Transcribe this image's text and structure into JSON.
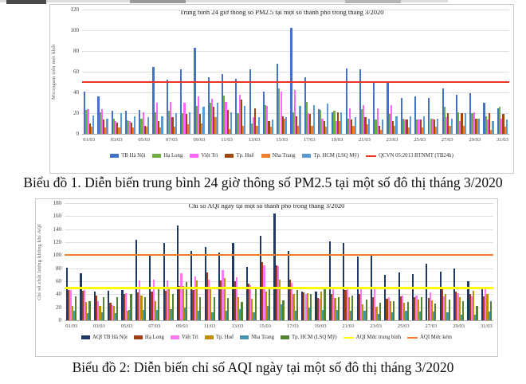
{
  "captions": {
    "chart1": "Biểu đồ 1. Diễn biến trung bình 24 giờ thông số PM2.5 tại một số đô thị tháng 3/2020",
    "chart2": "Biểu đồ 2: Diễn biến chỉ số AQI ngày tại một số đô thị tháng 3/2020"
  },
  "chart_data": [
    {
      "type": "bar",
      "title": "Trung bình 24 giờ thông số PM2.5 tại một số thành phố trong tháng 3/2020",
      "ylabel": "Microgam trên mét khối",
      "xlabel": "",
      "ylim": [
        0,
        120
      ],
      "ytick_step": 20,
      "grid": true,
      "legend_position": "bottom",
      "x_tick_labels": [
        "01/03",
        "03/03",
        "05/03",
        "07/03",
        "09/03",
        "11/03",
        "13/03",
        "15/03",
        "17/03",
        "19/03",
        "21/03",
        "23/03",
        "25/03",
        "27/03",
        "29/03",
        "31/03"
      ],
      "days": 31,
      "series": [
        {
          "name": "TB Hà Nội",
          "color": "#4472C4",
          "values": [
            41,
            36,
            22,
            22,
            23,
            65,
            52,
            62,
            83,
            55,
            58,
            53,
            62,
            41,
            68,
            102,
            55,
            24,
            21,
            63,
            62,
            50,
            50,
            35,
            36,
            35,
            44,
            38,
            39,
            30,
            25
          ]
        },
        {
          "name": "Hạ Long",
          "color": "#70AD47",
          "values": [
            23,
            21,
            15,
            13,
            15,
            21,
            22,
            20,
            27,
            30,
            37,
            20,
            10,
            28,
            44,
            21,
            31,
            23,
            22,
            15,
            24,
            14,
            19,
            15,
            14,
            15,
            26,
            21,
            20,
            17,
            26
          ]
        },
        {
          "name": "Việt Trì",
          "color": "#FF66FF",
          "values": [
            24,
            24,
            12,
            12,
            21,
            30,
            31,
            30,
            36,
            34,
            31,
            38,
            16,
            27,
            41,
            42,
            20,
            15,
            12,
            25,
            28,
            25,
            28,
            14,
            14,
            15,
            16,
            12,
            21,
            14,
            15
          ]
        },
        {
          "name": "Tp. Huế",
          "color": "#9E480E",
          "values": [
            10,
            14,
            11,
            11,
            8,
            12,
            16,
            19,
            19,
            26,
            23,
            33,
            25,
            12,
            17,
            17,
            19,
            12,
            21,
            14,
            16,
            8,
            12,
            14,
            14,
            14,
            20,
            20,
            15,
            20,
            19
          ]
        },
        {
          "name": "Nha Trang",
          "color": "#ED7D31",
          "values": [
            7,
            6,
            6,
            6,
            7,
            6,
            7,
            9,
            10,
            16,
            5,
            8,
            8,
            7,
            15,
            8,
            8,
            7,
            12,
            8,
            9,
            4,
            8,
            6,
            6,
            7,
            8,
            8,
            15,
            4,
            7
          ]
        },
        {
          "name": "Tp. HCM (LSQ Mỹ)",
          "color": "#5B9BD5",
          "values": [
            18,
            15,
            20,
            17,
            16,
            17,
            20,
            21,
            26,
            30,
            21,
            27,
            16,
            14,
            16,
            27,
            28,
            29,
            21,
            16,
            15,
            14,
            17,
            17,
            17,
            15,
            15,
            20,
            15,
            12,
            14
          ]
        }
      ],
      "reference_lines": [
        {
          "label": "QCVN 05:2013 BTNMT (TB24h)",
          "value": 50,
          "color": "#EB3223"
        }
      ]
    },
    {
      "type": "bar",
      "title": "Chỉ số AQI ngày tại một số thành phố trong tháng 3/2020",
      "ylabel": "Chỉ số chất lượng không khí AQI",
      "xlabel": "",
      "ylim": [
        0,
        180
      ],
      "ytick_step": 20,
      "grid": true,
      "legend_position": "bottom",
      "x_tick_labels": [
        "01/03",
        "03/03",
        "05/03",
        "07/03",
        "09/03",
        "11/03",
        "13/03",
        "15/03",
        "17/03",
        "19/03",
        "21/03",
        "23/03",
        "25/03",
        "27/03",
        "29/03",
        "31/03"
      ],
      "days": 31,
      "series": [
        {
          "name": "AQI TB Hà Nội",
          "color": "#1F3864",
          "values": [
            81,
            72,
            44,
            45,
            47,
            124,
            102,
            119,
            146,
            107,
            113,
            104,
            119,
            82,
            130,
            164,
            107,
            44,
            44,
            121,
            119,
            98,
            99,
            70,
            73,
            71,
            87,
            75,
            79,
            60,
            50
          ]
        },
        {
          "name": "Hạ Long",
          "color": "#A33E1C",
          "values": [
            46,
            45,
            38,
            27,
            40,
            43,
            44,
            45,
            53,
            47,
            73,
            61,
            60,
            56,
            90,
            84,
            62,
            43,
            34,
            40,
            46,
            40,
            35,
            33,
            37,
            36,
            34,
            50,
            44,
            40,
            37
          ]
        },
        {
          "name": "Việt Trì",
          "color": "#FF78F0",
          "values": [
            47,
            46,
            29,
            23,
            42,
            61,
            62,
            61,
            72,
            67,
            62,
            77,
            66,
            54,
            84,
            83,
            58,
            40,
            33,
            50,
            52,
            48,
            48,
            36,
            38,
            38,
            43,
            37,
            42,
            37,
            48
          ]
        },
        {
          "name": "Tp. Huế",
          "color": "#BF8F00",
          "values": [
            22,
            28,
            22,
            22,
            15,
            38,
            30,
            52,
            53,
            61,
            50,
            65,
            36,
            33,
            44,
            63,
            40,
            42,
            44,
            34,
            35,
            25,
            21,
            30,
            27,
            32,
            31,
            40,
            36,
            45,
            40
          ]
        },
        {
          "name": "Nha Trang",
          "color": "#4893AE",
          "values": [
            15,
            11,
            12,
            11,
            16,
            16,
            16,
            17,
            20,
            15,
            12,
            15,
            17,
            12,
            22,
            25,
            15,
            20,
            16,
            16,
            15,
            15,
            10,
            12,
            15,
            13,
            13,
            12,
            9,
            8,
            14
          ]
        },
        {
          "name": "Tp. HCM (LSQ Mỹ)",
          "color": "#548235",
          "values": [
            37,
            30,
            35,
            35,
            40,
            35,
            49,
            41,
            59,
            35,
            35,
            34,
            28,
            52,
            52,
            31,
            47,
            41,
            50,
            36,
            38,
            32,
            27,
            30,
            28,
            35,
            26,
            32,
            30,
            22,
            30
          ]
        }
      ],
      "reference_lines": [
        {
          "label": "AQI Mức trung bình",
          "value": 50,
          "color": "#FFFF00"
        },
        {
          "label": "AQI Mức kém",
          "value": 100,
          "color": "#ED7D31"
        }
      ]
    }
  ]
}
